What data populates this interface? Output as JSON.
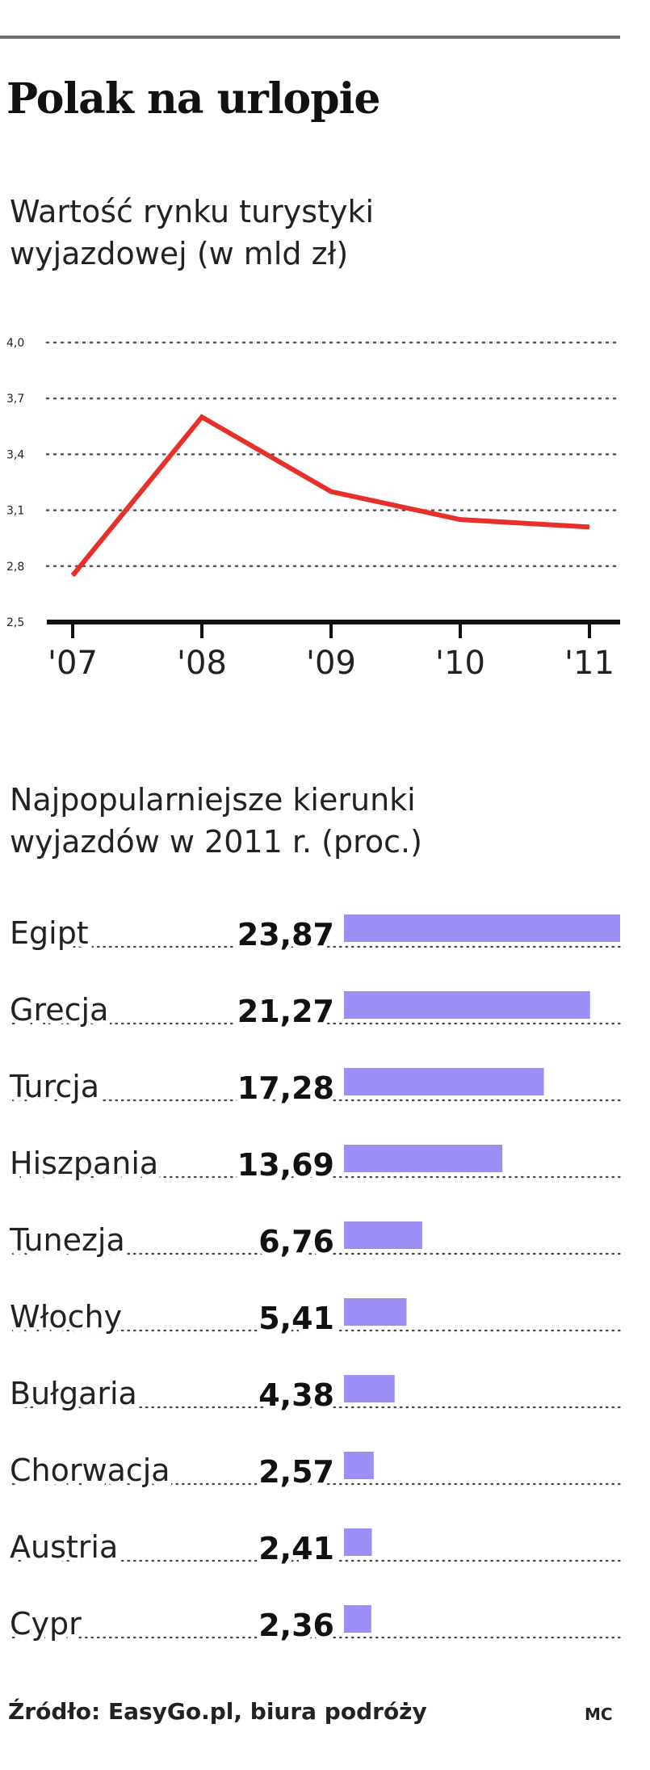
{
  "title": "Polak na urlopie",
  "source": "Źródło: EasyGo.pl, biura podróży",
  "author": "MC",
  "chart_data": [
    {
      "type": "line",
      "subtitle_lines": [
        "Wartość rynku turystyki",
        "wyjazdowej (w mld zł)"
      ],
      "x": [
        "'07",
        "'08",
        "'09",
        "'10",
        "'11"
      ],
      "series": [
        {
          "values": [
            2.75,
            3.6,
            3.2,
            3.05,
            3.01
          ],
          "color": "#e8302b"
        }
      ],
      "yticks": [
        "4,0",
        "3,7",
        "3,4",
        "3,1",
        "2,8",
        "2,5"
      ],
      "ylim": [
        2.5,
        4.0
      ],
      "grid": true
    },
    {
      "type": "bar",
      "orientation": "horizontal",
      "subtitle_lines": [
        "Najpopularniejsze kierunki",
        "wyjazdów w 2011 r. (proc.)"
      ],
      "categories": [
        "Egipt",
        "Grecja",
        "Turcja",
        "Hiszpania",
        "Tunezja",
        "Włochy",
        "Bułgaria",
        "Chorwacja",
        "Austria",
        "Cypr"
      ],
      "values": [
        23.87,
        21.27,
        17.28,
        13.69,
        6.76,
        5.41,
        4.38,
        2.57,
        2.41,
        2.36
      ],
      "value_labels": [
        "23,87",
        "21,27",
        "17,28",
        "13,69",
        "6,76",
        "5,41",
        "4,38",
        "2,57",
        "2,41",
        "2,36"
      ],
      "color": "#9b8ff5",
      "xlim": [
        0,
        23.87
      ]
    }
  ]
}
